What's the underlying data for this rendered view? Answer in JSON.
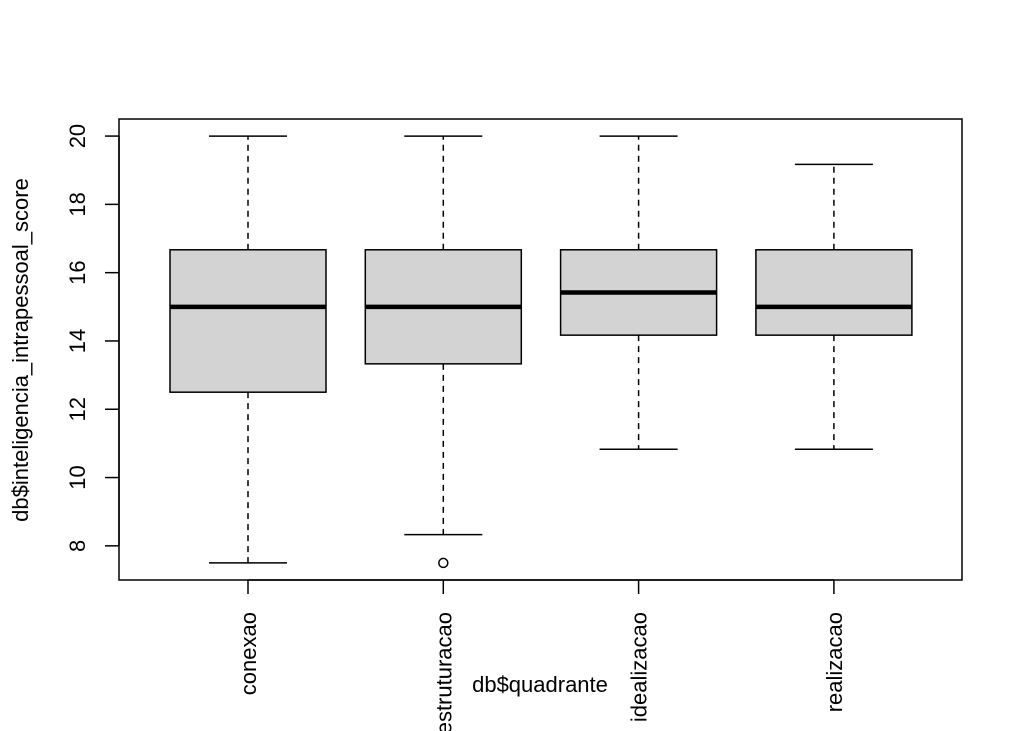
{
  "chart_data": {
    "type": "boxplot",
    "title": "",
    "xlabel": "db$quadrante",
    "ylabel": "db$inteligencia_intrapessoal_score",
    "ylim": [
      7,
      20.5
    ],
    "yticks": [
      8,
      10,
      12,
      14,
      16,
      18,
      20
    ],
    "categories": [
      "conexao",
      "estruturacao",
      "idealizacao",
      "realizacao"
    ],
    "boxes": [
      {
        "category": "conexao",
        "whisker_low": 7.5,
        "q1": 12.5,
        "median": 15.0,
        "q3": 16.67,
        "whisker_high": 20.0,
        "outliers": []
      },
      {
        "category": "estruturacao",
        "whisker_low": 8.33,
        "q1": 13.33,
        "median": 15.0,
        "q3": 16.67,
        "whisker_high": 20.0,
        "outliers": [
          7.5
        ]
      },
      {
        "category": "idealizacao",
        "whisker_low": 10.83,
        "q1": 14.17,
        "median": 15.42,
        "q3": 16.67,
        "whisker_high": 20.0,
        "outliers": []
      },
      {
        "category": "realizacao",
        "whisker_low": 10.83,
        "q1": 14.17,
        "median": 15.0,
        "q3": 16.67,
        "whisker_high": 19.17,
        "outliers": []
      }
    ],
    "box_fill": "#d3d3d3",
    "line_color": "#000000",
    "grid": false,
    "legend": "none"
  }
}
